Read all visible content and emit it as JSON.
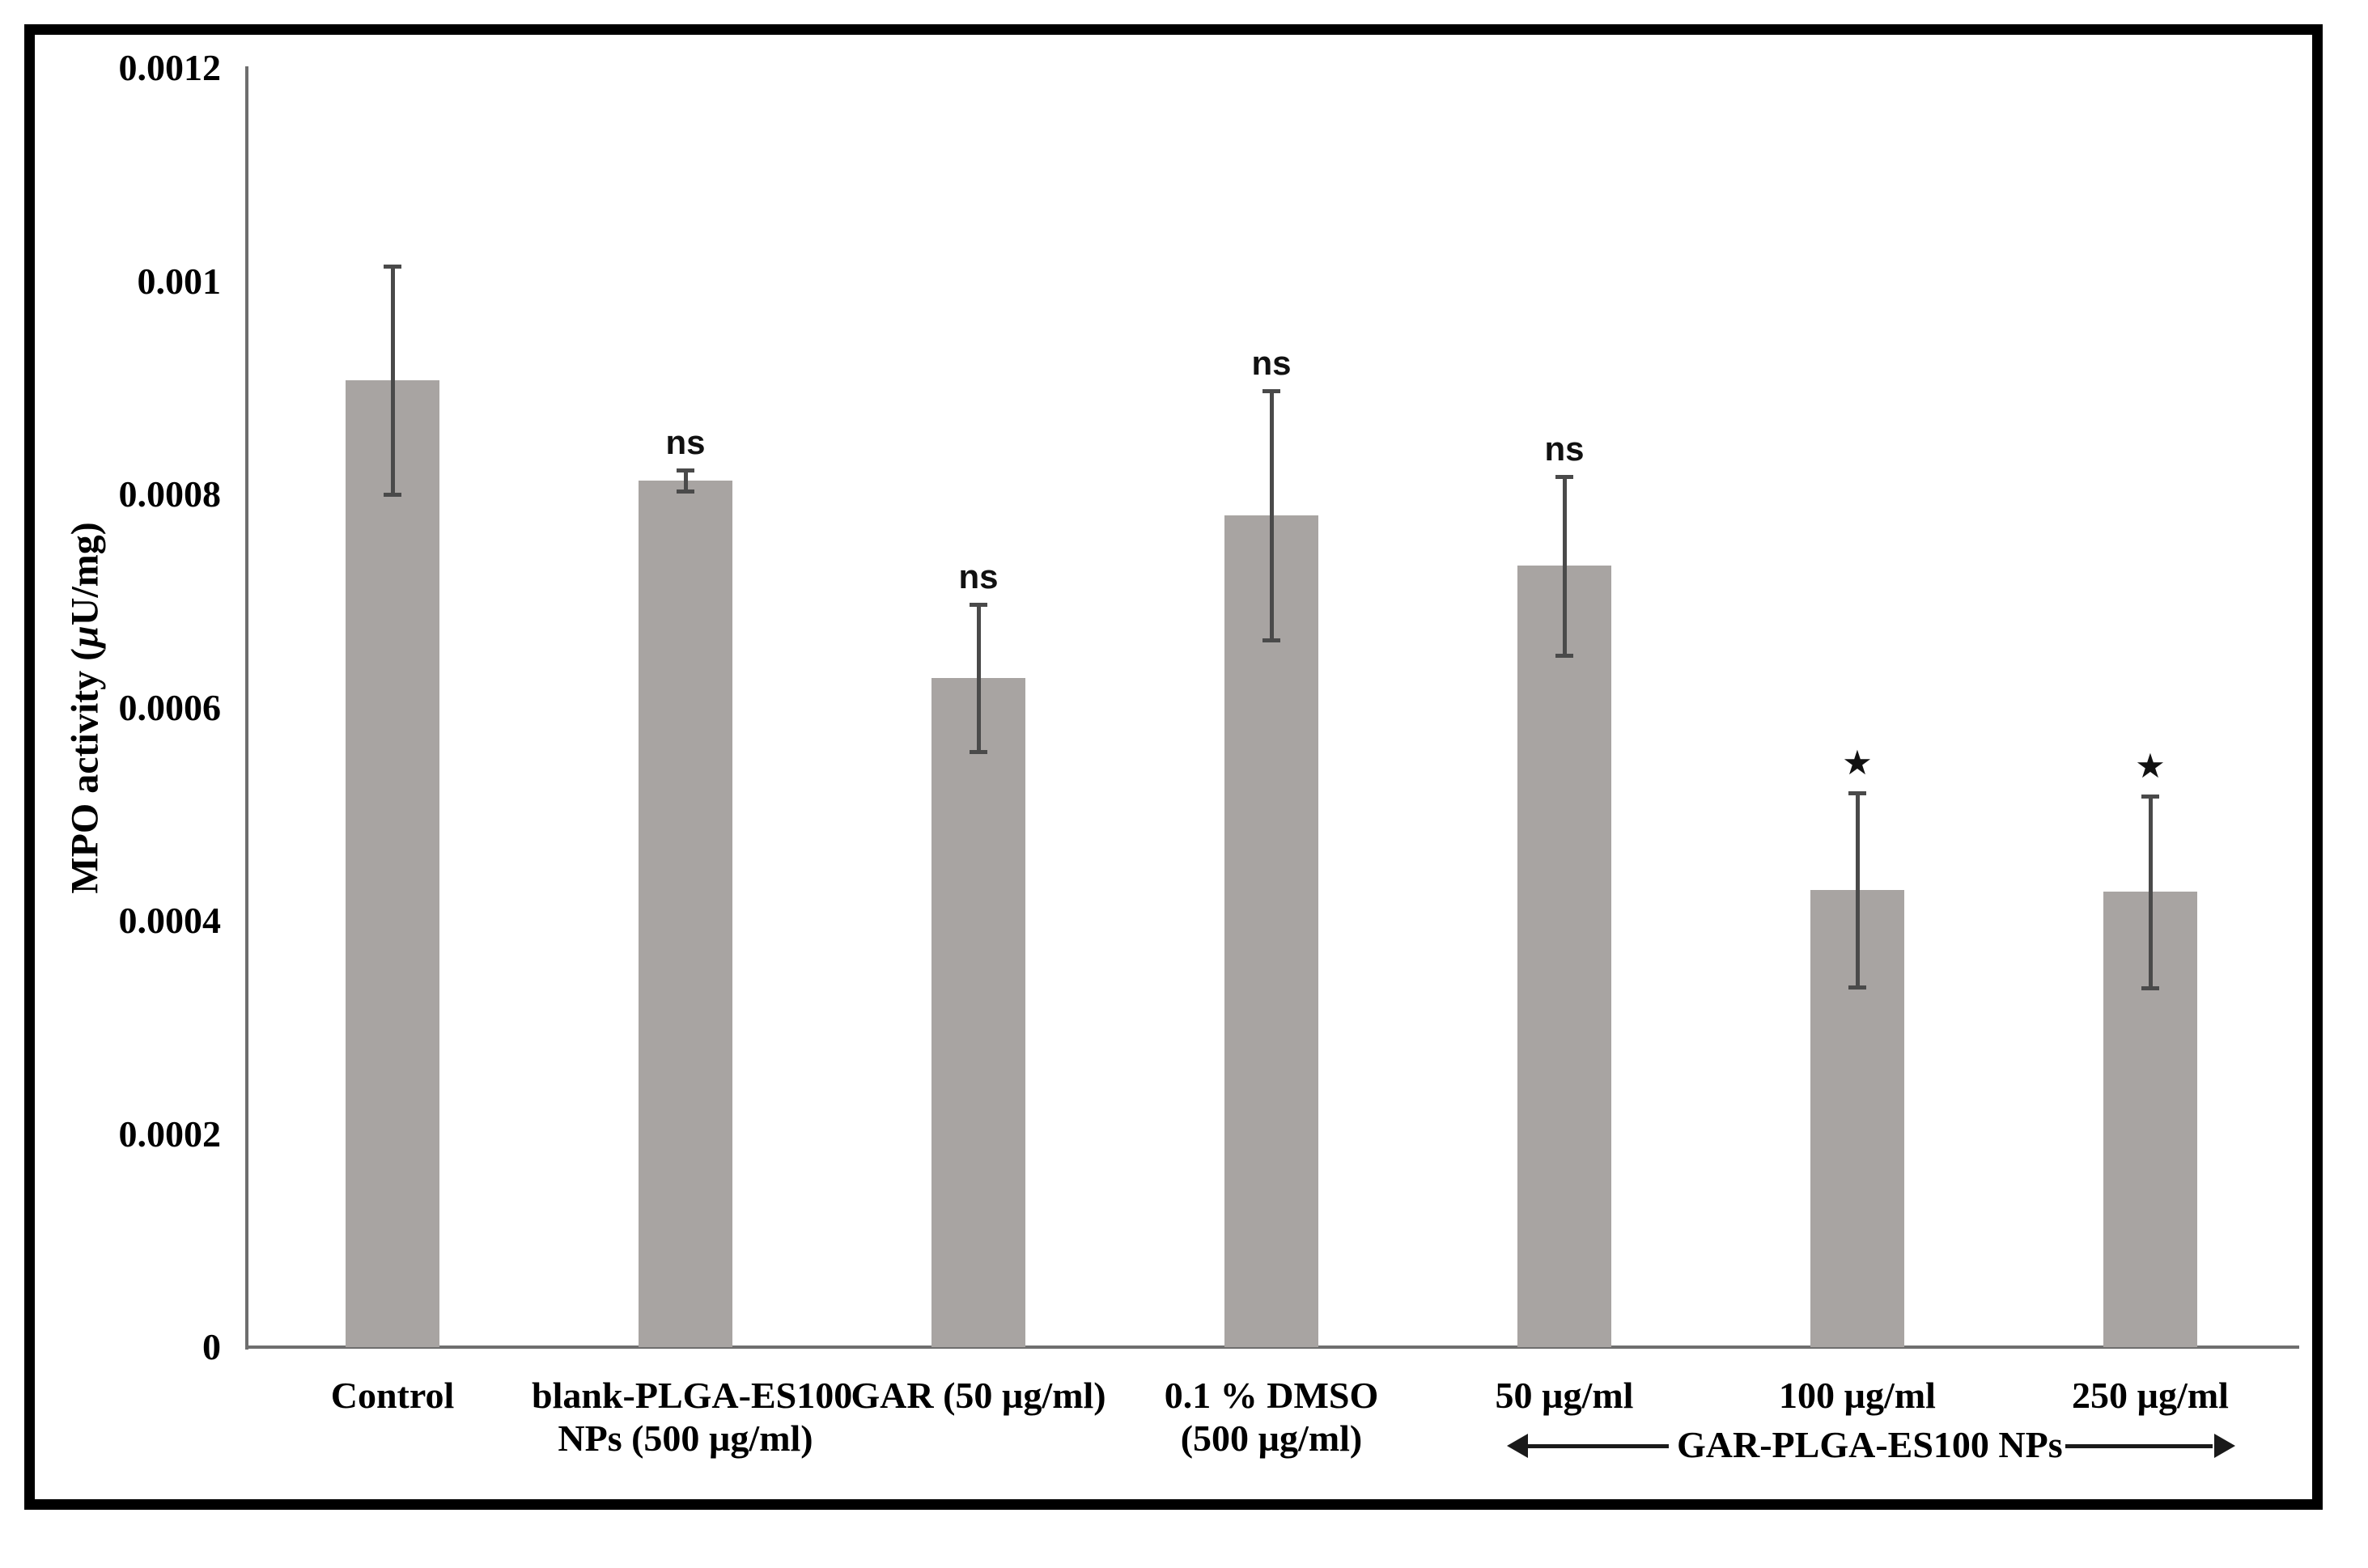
{
  "chart_data": {
    "type": "bar",
    "title": "",
    "xlabel": "",
    "ylabel": "MPO activity (µU/mg)",
    "ylabel_parts": {
      "pre": "MPO activity (",
      "mu": "µ",
      "post": "U/mg)"
    },
    "ylim": [
      0,
      0.0012
    ],
    "grid": false,
    "legend": false,
    "yticks": [
      {
        "value": 0,
        "label": "0"
      },
      {
        "value": 0.0002,
        "label": "0.0002"
      },
      {
        "value": 0.0004,
        "label": "0.0004"
      },
      {
        "value": 0.0006,
        "label": "0.0006"
      },
      {
        "value": 0.0008,
        "label": "0.0008"
      },
      {
        "value": 0.001,
        "label": "0.001"
      },
      {
        "value": 0.0012,
        "label": "0.0012"
      }
    ],
    "categories": [
      "Control",
      "blank-PLGA-ES100 NPs (500 µg/ml)",
      "GAR (50 µg/ml)",
      "0.1 % DMSO (500 µg/ml)",
      "50 µg/ml",
      "100 µg/ml",
      "250 µg/ml"
    ],
    "category_label_lines": [
      [
        "Control"
      ],
      [
        "blank-PLGA-ES100",
        "NPs (500 µg/ml)"
      ],
      [
        "GAR (50 µg/ml)"
      ],
      [
        "0.1 % DMSO",
        "(500 µg/ml)"
      ],
      [
        "50 µg/ml"
      ],
      [
        "100 µg/ml"
      ],
      [
        "250 µg/ml"
      ]
    ],
    "series": [
      {
        "name": "MPO activity",
        "values": [
          0.000907,
          0.000813,
          0.000628,
          0.00078,
          0.000733,
          0.000429,
          0.000427
        ],
        "error_bars": [
          0.000107,
          1e-05,
          6.9e-05,
          0.000117,
          8.4e-05,
          9.1e-05,
          9e-05
        ],
        "annotations": [
          "",
          "ns",
          "ns",
          "ns",
          "ns",
          "*",
          "*"
        ]
      }
    ],
    "group_annotation": {
      "label": "GAR-PLGA-ES100 NPs",
      "spans_categories": [
        "50 µg/ml",
        "100 µg/ml",
        "250 µg/ml"
      ]
    },
    "bar_color": "#a8a4a2",
    "error_bar_color": "#4a4a4a",
    "axis_color": "#6e6e6e"
  }
}
